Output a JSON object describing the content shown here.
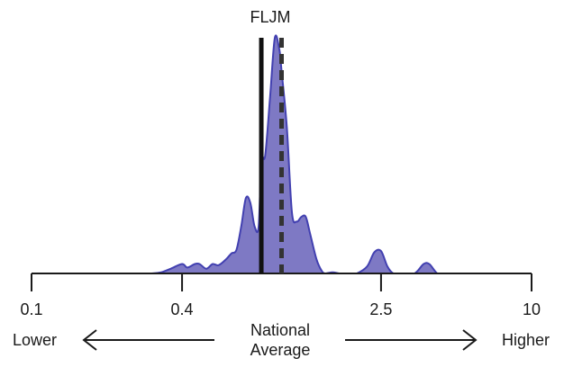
{
  "chart_data": {
    "type": "area",
    "title": "FLJM",
    "x_scale": "log",
    "xlim": [
      0.1,
      10
    ],
    "x_ticks": [
      0.1,
      0.4,
      2.5,
      10
    ],
    "x_tick_labels": [
      "0.1",
      "0.4",
      "2.5",
      "10"
    ],
    "grid": false,
    "marker_solid": 0.83,
    "marker_dashed": 1.0,
    "direction_labels": {
      "lower": "Lower",
      "higher": "Higher",
      "center": [
        "National",
        "Average"
      ]
    },
    "density": {
      "x": [
        0.3,
        0.33,
        0.36,
        0.4,
        0.42,
        0.45,
        0.47,
        0.5,
        0.53,
        0.56,
        0.6,
        0.63,
        0.66,
        0.69,
        0.72,
        0.75,
        0.78,
        0.81,
        0.83,
        0.86,
        0.9,
        0.94,
        0.98,
        1.0,
        1.05,
        1.1,
        1.15,
        1.2,
        1.25,
        1.3,
        1.38,
        1.45,
        1.5,
        1.6,
        1.7,
        1.8,
        1.9,
        2.0,
        2.2,
        2.35,
        2.5,
        2.65,
        2.8,
        3.0,
        3.4,
        3.7,
        3.9,
        4.2,
        4.5,
        5.0
      ],
      "y": [
        0,
        0.005,
        0.02,
        0.04,
        0.025,
        0.04,
        0.04,
        0.02,
        0.04,
        0.035,
        0.06,
        0.085,
        0.1,
        0.2,
        0.32,
        0.3,
        0.2,
        0.2,
        0.48,
        0.5,
        0.75,
        1.0,
        0.95,
        0.86,
        0.62,
        0.26,
        0.22,
        0.24,
        0.24,
        0.17,
        0.06,
        0.01,
        0.0,
        0.005,
        0.0,
        0.0,
        0.0,
        0.0,
        0.03,
        0.09,
        0.095,
        0.03,
        0.0,
        0.0,
        0.0,
        0.04,
        0.04,
        0.0,
        0.0,
        0.0
      ]
    }
  }
}
